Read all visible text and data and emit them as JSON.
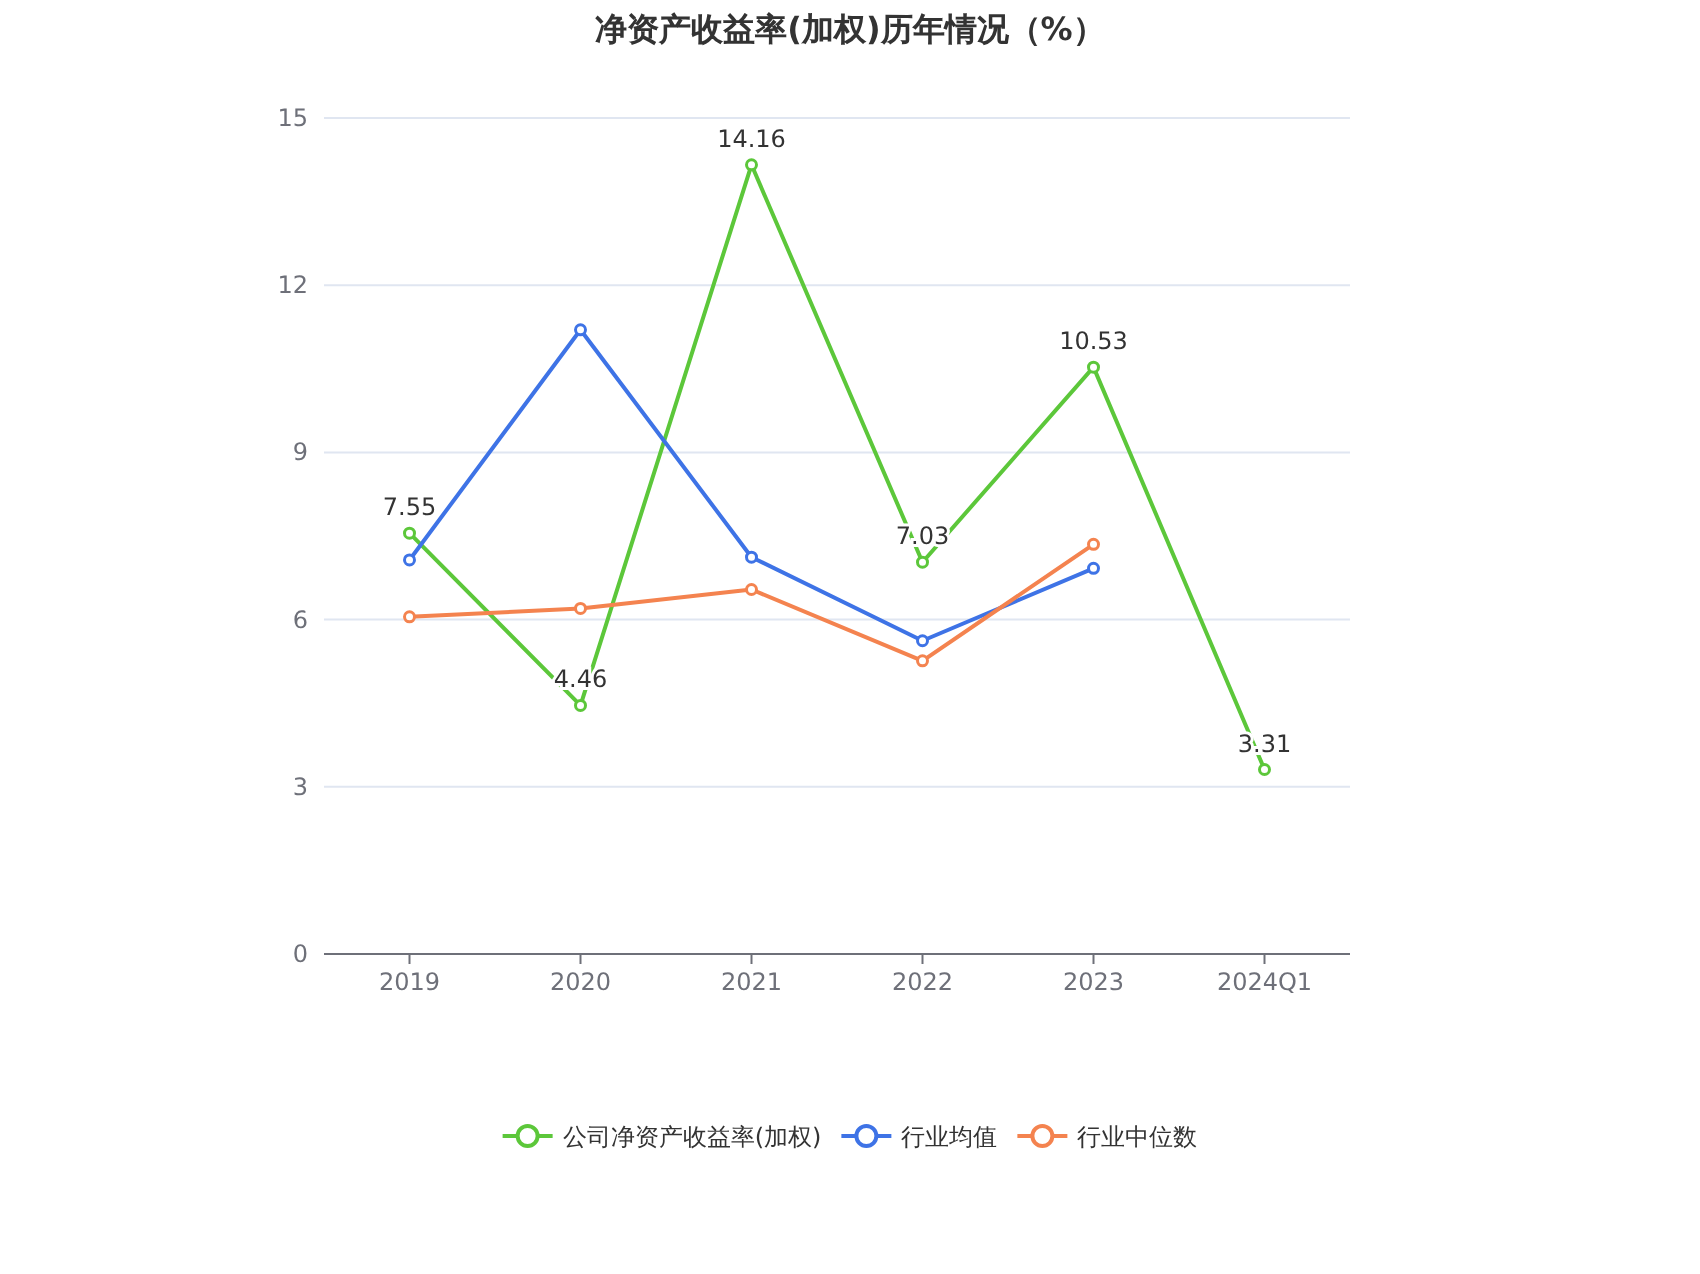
{
  "chart_data": {
    "type": "line",
    "title": "净资产收益率(加权)历年情况（%）",
    "categories": [
      "2019",
      "2020",
      "2021",
      "2022",
      "2023",
      "2024Q1"
    ],
    "series": [
      {
        "name": "公司净资产收益率(加权)",
        "color": "#5cc73a",
        "values": [
          7.55,
          4.46,
          14.16,
          7.03,
          10.53,
          3.31
        ],
        "value_labels": [
          "7.55",
          "4.46",
          "14.16",
          "7.03",
          "10.53",
          "3.31"
        ]
      },
      {
        "name": "行业均值",
        "color": "#3e73e6",
        "values": [
          7.07,
          11.2,
          7.12,
          5.62,
          6.92,
          null
        ]
      },
      {
        "name": "行业中位数",
        "color": "#f4834f",
        "values": [
          6.05,
          6.2,
          6.54,
          5.26,
          7.35,
          null
        ]
      }
    ],
    "ylim": [
      0,
      15
    ],
    "yticks": [
      0,
      3,
      6,
      9,
      12,
      15
    ],
    "grid": "y",
    "legend": "bottom",
    "marker": "circle",
    "line_style": "solid"
  }
}
